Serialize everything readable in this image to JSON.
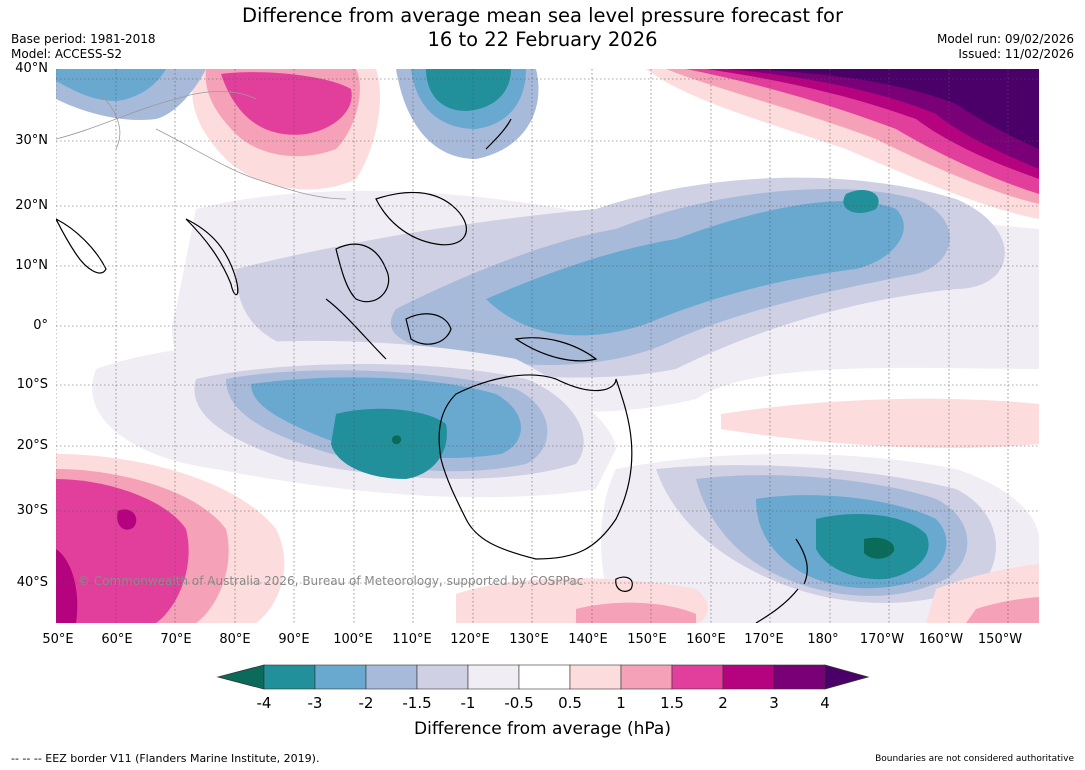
{
  "title_line1": "Difference from average mean sea level pressure forecast for",
  "title_line2": "16 to 22 February 2026",
  "base_period": "Base period: 1981-2018",
  "model": "Model: ACCESS-S2",
  "model_run": "Model run: 09/02/2026",
  "issued": "Issued: 11/02/2026",
  "copyright": "© Commonwealth of Australia 2026, Bureau of Meteorology, supported by COSPPac",
  "footer_left": "--  --  -- EEZ border V11 (Flanders Marine Institute, 2019).",
  "footer_right": "Boundaries are not considered authoritative",
  "lat_labels": [
    "40°N",
    "30°N",
    "20°N",
    "10°N",
    "0°",
    "10°S",
    "20°S",
    "30°S",
    "40°S"
  ],
  "lon_labels": [
    "50°E",
    "60°E",
    "70°E",
    "80°E",
    "90°E",
    "100°E",
    "110°E",
    "120°E",
    "130°E",
    "140°E",
    "150°E",
    "160°E",
    "170°E",
    "180°",
    "170°W",
    "160°W",
    "150°W"
  ],
  "colorbar": {
    "title": "Difference from average (hPa)",
    "tick_labels": [
      "-4",
      "-3",
      "-2",
      "-1.5",
      "-1",
      "-0.5",
      "0.5",
      "1",
      "1.5",
      "2",
      "3",
      "4"
    ],
    "colors": [
      "#0b6b5a",
      "#22909a",
      "#69a9d0",
      "#a8bad9",
      "#cfd0e4",
      "#f1edf4",
      "#ffffff",
      "#fcdcdc",
      "#f5a2b8",
      "#e23f9d",
      "#b5027f",
      "#7a0077",
      "#4a0068"
    ]
  }
}
